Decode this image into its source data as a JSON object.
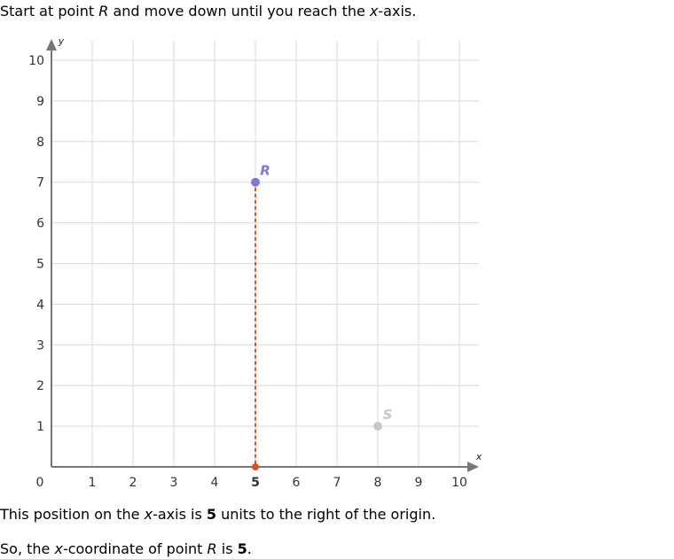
{
  "text": {
    "instruction": {
      "pre": "Start at point ",
      "point": "R",
      "mid": " and move down until you reach the ",
      "axis": "x",
      "post": "-axis."
    },
    "explain1": {
      "pre": "This position on the ",
      "axis": "x",
      "mid": "-axis is ",
      "value": "5",
      "post": " units to the right of the origin."
    },
    "explain2": {
      "pre": "So, the ",
      "axis": "x",
      "mid": "-coordinate of point ",
      "point": "R",
      "is": " is ",
      "value": "5",
      "end": "."
    }
  },
  "chart_data": {
    "type": "scatter",
    "xlabel": "x",
    "ylabel": "y",
    "xlim": [
      0,
      10
    ],
    "ylim": [
      0,
      10
    ],
    "grid": true,
    "x_ticks": [
      1,
      2,
      3,
      4,
      5,
      6,
      7,
      8,
      9,
      10
    ],
    "y_ticks": [
      1,
      2,
      3,
      4,
      5,
      6,
      7,
      8,
      9,
      10
    ],
    "origin_label": "0",
    "highlight_x_tick": 5,
    "points": [
      {
        "name": "R",
        "x": 5,
        "y": 7,
        "color": "#8079d6"
      },
      {
        "name": "S",
        "x": 8,
        "y": 1,
        "color": "#c8c8c8"
      }
    ],
    "guide": {
      "from": [
        5,
        7
      ],
      "to": [
        5,
        0
      ],
      "color": "#d9531e"
    }
  }
}
